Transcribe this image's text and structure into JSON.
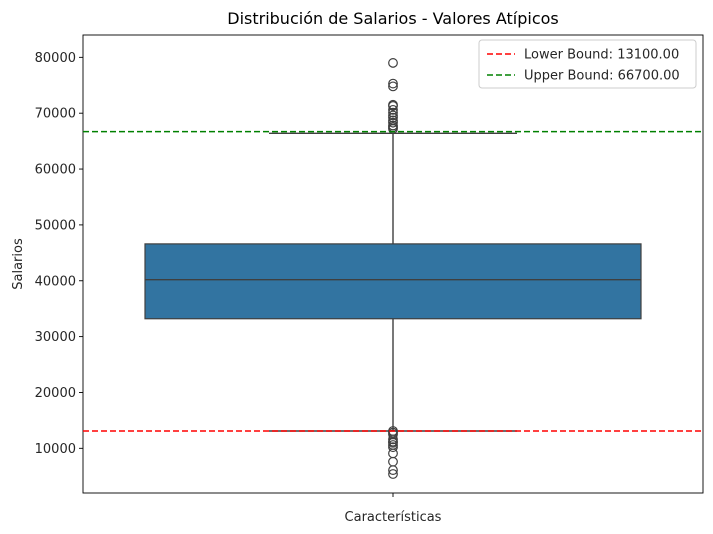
{
  "chart_data": {
    "type": "box",
    "title": "Distribución de Salarios - Valores Atípicos",
    "xlabel": "Características",
    "ylabel": "Salarios",
    "ylim": [
      2000,
      84000
    ],
    "yticks": [
      10000,
      20000,
      30000,
      40000,
      50000,
      60000,
      70000,
      80000
    ],
    "yticklabels": [
      "10000",
      "20000",
      "30000",
      "40000",
      "50000",
      "60000",
      "70000",
      "80000"
    ],
    "box": {
      "q1": 33200,
      "median": 40200,
      "q3": 46600,
      "whisker_low": 13100,
      "whisker_high": 66400,
      "color": "#3274a1"
    },
    "outliers": [
      79000,
      75300,
      74800,
      71500,
      71300,
      70600,
      70100,
      69600,
      69200,
      68700,
      68300,
      67800,
      67500,
      67200,
      13100,
      12800,
      12500,
      11600,
      11200,
      11000,
      10600,
      10200,
      9100,
      7600,
      6100,
      5400
    ],
    "reference_lines": [
      {
        "name": "Lower Bound: 13100.00",
        "value": 13100,
        "color": "#ff0000"
      },
      {
        "name": "Upper Bound: 66700.00",
        "value": 66700,
        "color": "#008000"
      }
    ],
    "legend_position": "top-right",
    "grid": false
  }
}
